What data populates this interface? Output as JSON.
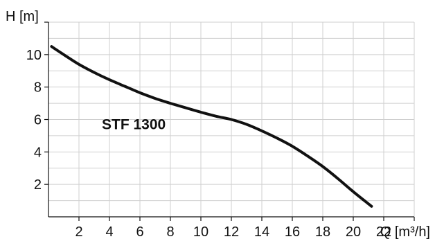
{
  "chart_data": {
    "type": "line",
    "title": "",
    "xlabel": "Q [m³/h]",
    "ylabel": "H [m]",
    "xlim": [
      0,
      24
    ],
    "ylim": [
      0,
      12
    ],
    "x_ticks": [
      2,
      4,
      6,
      8,
      10,
      12,
      14,
      16,
      18,
      20,
      22
    ],
    "y_ticks": [
      2,
      4,
      6,
      8,
      10
    ],
    "grid": true,
    "series": [
      {
        "name": "STF 1300",
        "x": [
          0.2,
          1,
          2,
          3,
          4,
          5,
          6,
          7,
          8,
          9,
          10,
          11,
          12,
          13,
          14,
          15,
          16,
          17,
          18,
          19,
          20,
          21,
          21.2
        ],
        "y": [
          10.5,
          10.0,
          9.4,
          8.9,
          8.45,
          8.05,
          7.65,
          7.3,
          7.0,
          6.72,
          6.45,
          6.2,
          6.0,
          5.7,
          5.3,
          4.85,
          4.35,
          3.75,
          3.1,
          2.35,
          1.55,
          0.8,
          0.65
        ],
        "color": "#111111"
      }
    ]
  }
}
